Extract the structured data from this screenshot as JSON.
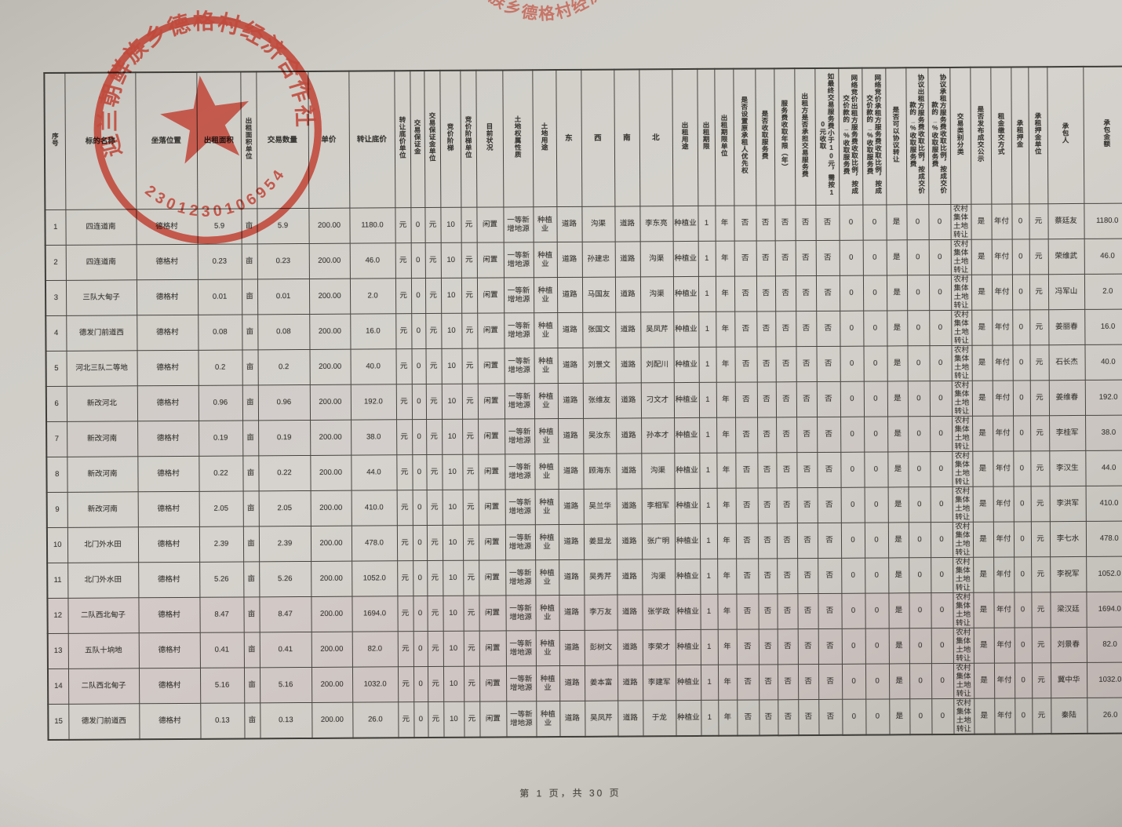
{
  "page": {
    "footer": "第 1 页，共 30 页"
  },
  "stamp": {
    "arc_text": "迎兰朝鲜族乡德格村经济合作社",
    "number": "2301230106954",
    "color": "#bf3a2b"
  },
  "table": {
    "headers": [
      "序号",
      "标的名称",
      "坐落位置",
      "出租面积",
      "出租面积单位",
      "交易数量",
      "单价",
      "转让底价",
      "转让底价单位",
      "交易保证金",
      "交易保证金单位",
      "竞价阶梯",
      "竞价阶梯单位",
      "目前状况",
      "土地权属性质",
      "土地用途",
      "东",
      "西",
      "南",
      "北",
      "出租用途",
      "出租期限",
      "出租期限单位",
      "是否设置原承租人优先权",
      "是否收取服务费",
      "服务费收取年限（年）",
      "出租方是否承担交易服务费",
      "如最终交易服务费小于10元，需按10元收取",
      "网络竞价出租方服务费收取比例，按成交价款的_%收取服务费",
      "网络竞价承租方服务费收取比例，按成交价款的_%收取服务费",
      "是否可以协议转让",
      "协议出租方服务费收取比例，按成交价款的_%收取服务费",
      "协议承租方服务费收取比例，按成交价款的_%收取服务费",
      "交易类别分类",
      "是否发布成交公示",
      "租金缴交方式",
      "承租押金",
      "承租押金单位",
      "承包人",
      "承包金额"
    ],
    "rows": [
      [
        "1",
        "四连道南",
        "德格村",
        "5.9",
        "亩",
        "5.9",
        "200.00",
        "1180.0",
        "元",
        "0",
        "元",
        "10",
        "元",
        "闲置",
        "一等新增地源",
        "种植业",
        "道路",
        "沟渠",
        "道路",
        "李东亮",
        "种植业",
        "1",
        "年",
        "否",
        "否",
        "否",
        "否",
        "否",
        "0",
        "0",
        "是",
        "0",
        "0",
        "农村集体土地转让",
        "是",
        "年付",
        "0",
        "元",
        "蔡廷友",
        "1180.0"
      ],
      [
        "2",
        "四连道南",
        "德格村",
        "0.23",
        "亩",
        "0.23",
        "200.00",
        "46.0",
        "元",
        "0",
        "元",
        "10",
        "元",
        "闲置",
        "一等新增地源",
        "种植业",
        "道路",
        "孙建忠",
        "道路",
        "沟渠",
        "种植业",
        "1",
        "年",
        "否",
        "否",
        "否",
        "否",
        "否",
        "0",
        "0",
        "是",
        "0",
        "0",
        "农村集体土地转让",
        "是",
        "年付",
        "0",
        "元",
        "荣维武",
        "46.0"
      ],
      [
        "3",
        "三队大甸子",
        "德格村",
        "0.01",
        "亩",
        "0.01",
        "200.00",
        "2.0",
        "元",
        "0",
        "元",
        "10",
        "元",
        "闲置",
        "一等新增地源",
        "种植业",
        "道路",
        "马国友",
        "道路",
        "沟渠",
        "种植业",
        "1",
        "年",
        "否",
        "否",
        "否",
        "否",
        "否",
        "0",
        "0",
        "是",
        "0",
        "0",
        "农村集体土地转让",
        "是",
        "年付",
        "0",
        "元",
        "冯军山",
        "2.0"
      ],
      [
        "4",
        "德发门前道西",
        "德格村",
        "0.08",
        "亩",
        "0.08",
        "200.00",
        "16.0",
        "元",
        "0",
        "元",
        "10",
        "元",
        "闲置",
        "一等新增地源",
        "种植业",
        "道路",
        "张国文",
        "道路",
        "吴凤芹",
        "种植业",
        "1",
        "年",
        "否",
        "否",
        "否",
        "否",
        "否",
        "0",
        "0",
        "是",
        "0",
        "0",
        "农村集体土地转让",
        "是",
        "年付",
        "0",
        "元",
        "姜丽春",
        "16.0"
      ],
      [
        "5",
        "河北三队二等地",
        "德格村",
        "0.2",
        "亩",
        "0.2",
        "200.00",
        "40.0",
        "元",
        "0",
        "元",
        "10",
        "元",
        "闲置",
        "一等新增地源",
        "种植业",
        "道路",
        "刘景文",
        "道路",
        "刘配川",
        "种植业",
        "1",
        "年",
        "否",
        "否",
        "否",
        "否",
        "否",
        "0",
        "0",
        "是",
        "0",
        "0",
        "农村集体土地转让",
        "是",
        "年付",
        "0",
        "元",
        "石长杰",
        "40.0"
      ],
      [
        "6",
        "新改河北",
        "德格村",
        "0.96",
        "亩",
        "0.96",
        "200.00",
        "192.0",
        "元",
        "0",
        "元",
        "10",
        "元",
        "闲置",
        "一等新增地源",
        "种植业",
        "道路",
        "张维友",
        "道路",
        "刁文才",
        "种植业",
        "1",
        "年",
        "否",
        "否",
        "否",
        "否",
        "否",
        "0",
        "0",
        "是",
        "0",
        "0",
        "农村集体土地转让",
        "是",
        "年付",
        "0",
        "元",
        "姜维春",
        "192.0"
      ],
      [
        "7",
        "新改河南",
        "德格村",
        "0.19",
        "亩",
        "0.19",
        "200.00",
        "38.0",
        "元",
        "0",
        "元",
        "10",
        "元",
        "闲置",
        "一等新增地源",
        "种植业",
        "道路",
        "吴汝东",
        "道路",
        "孙本才",
        "种植业",
        "1",
        "年",
        "否",
        "否",
        "否",
        "否",
        "否",
        "0",
        "0",
        "是",
        "0",
        "0",
        "农村集体土地转让",
        "是",
        "年付",
        "0",
        "元",
        "李桂军",
        "38.0"
      ],
      [
        "8",
        "新改河南",
        "德格村",
        "0.22",
        "亩",
        "0.22",
        "200.00",
        "44.0",
        "元",
        "0",
        "元",
        "10",
        "元",
        "闲置",
        "一等新增地源",
        "种植业",
        "道路",
        "顾海东",
        "道路",
        "沟渠",
        "种植业",
        "1",
        "年",
        "否",
        "否",
        "否",
        "否",
        "否",
        "0",
        "0",
        "是",
        "0",
        "0",
        "农村集体土地转让",
        "是",
        "年付",
        "0",
        "元",
        "李汉生",
        "44.0"
      ],
      [
        "9",
        "新改河南",
        "德格村",
        "2.05",
        "亩",
        "2.05",
        "200.00",
        "410.0",
        "元",
        "0",
        "元",
        "10",
        "元",
        "闲置",
        "一等新增地源",
        "种植业",
        "道路",
        "吴兰华",
        "道路",
        "李相军",
        "种植业",
        "1",
        "年",
        "否",
        "否",
        "否",
        "否",
        "否",
        "0",
        "0",
        "是",
        "0",
        "0",
        "农村集体土地转让",
        "是",
        "年付",
        "0",
        "元",
        "李洪军",
        "410.0"
      ],
      [
        "10",
        "北门外水田",
        "德格村",
        "2.39",
        "亩",
        "2.39",
        "200.00",
        "478.0",
        "元",
        "0",
        "元",
        "10",
        "元",
        "闲置",
        "一等新增地源",
        "种植业",
        "道路",
        "姜显龙",
        "道路",
        "张广明",
        "种植业",
        "1",
        "年",
        "否",
        "否",
        "否",
        "否",
        "否",
        "0",
        "0",
        "是",
        "0",
        "0",
        "农村集体土地转让",
        "是",
        "年付",
        "0",
        "元",
        "李七水",
        "478.0"
      ],
      [
        "11",
        "北门外水田",
        "德格村",
        "5.26",
        "亩",
        "5.26",
        "200.00",
        "1052.0",
        "元",
        "0",
        "元",
        "10",
        "元",
        "闲置",
        "一等新增地源",
        "种植业",
        "道路",
        "吴秀芹",
        "道路",
        "沟渠",
        "种植业",
        "1",
        "年",
        "否",
        "否",
        "否",
        "否",
        "否",
        "0",
        "0",
        "是",
        "0",
        "0",
        "农村集体土地转让",
        "是",
        "年付",
        "0",
        "元",
        "李祝军",
        "1052.0"
      ],
      [
        "12",
        "二队西北甸子",
        "德格村",
        "8.47",
        "亩",
        "8.47",
        "200.00",
        "1694.0",
        "元",
        "0",
        "元",
        "10",
        "元",
        "闲置",
        "一等新增地源",
        "种植业",
        "道路",
        "李万友",
        "道路",
        "张学政",
        "种植业",
        "1",
        "年",
        "否",
        "否",
        "否",
        "否",
        "否",
        "0",
        "0",
        "是",
        "0",
        "0",
        "农村集体土地转让",
        "是",
        "年付",
        "0",
        "元",
        "梁汉廷",
        "1694.0"
      ],
      [
        "13",
        "五队十垧地",
        "德格村",
        "0.41",
        "亩",
        "0.41",
        "200.00",
        "82.0",
        "元",
        "0",
        "元",
        "10",
        "元",
        "闲置",
        "一等新增地源",
        "种植业",
        "道路",
        "彭树文",
        "道路",
        "李荣才",
        "种植业",
        "1",
        "年",
        "否",
        "否",
        "否",
        "否",
        "否",
        "0",
        "0",
        "是",
        "0",
        "0",
        "农村集体土地转让",
        "是",
        "年付",
        "0",
        "元",
        "刘景春",
        "82.0"
      ],
      [
        "14",
        "二队西北甸子",
        "德格村",
        "5.16",
        "亩",
        "5.16",
        "200.00",
        "1032.0",
        "元",
        "0",
        "元",
        "10",
        "元",
        "闲置",
        "一等新增地源",
        "种植业",
        "道路",
        "姜本富",
        "道路",
        "李建军",
        "种植业",
        "1",
        "年",
        "否",
        "否",
        "否",
        "否",
        "否",
        "0",
        "0",
        "是",
        "0",
        "0",
        "农村集体土地转让",
        "是",
        "年付",
        "0",
        "元",
        "冀中华",
        "1032.0"
      ],
      [
        "15",
        "德发门前道西",
        "德格村",
        "0.13",
        "亩",
        "0.13",
        "200.00",
        "26.0",
        "元",
        "0",
        "元",
        "10",
        "元",
        "闲置",
        "一等新增地源",
        "种植业",
        "道路",
        "吴凤芹",
        "道路",
        "于龙",
        "种植业",
        "1",
        "年",
        "否",
        "否",
        "否",
        "否",
        "否",
        "0",
        "0",
        "是",
        "0",
        "0",
        "农村集体土地转让",
        "是",
        "年付",
        "0",
        "元",
        "秦陆",
        "26.0"
      ]
    ]
  }
}
